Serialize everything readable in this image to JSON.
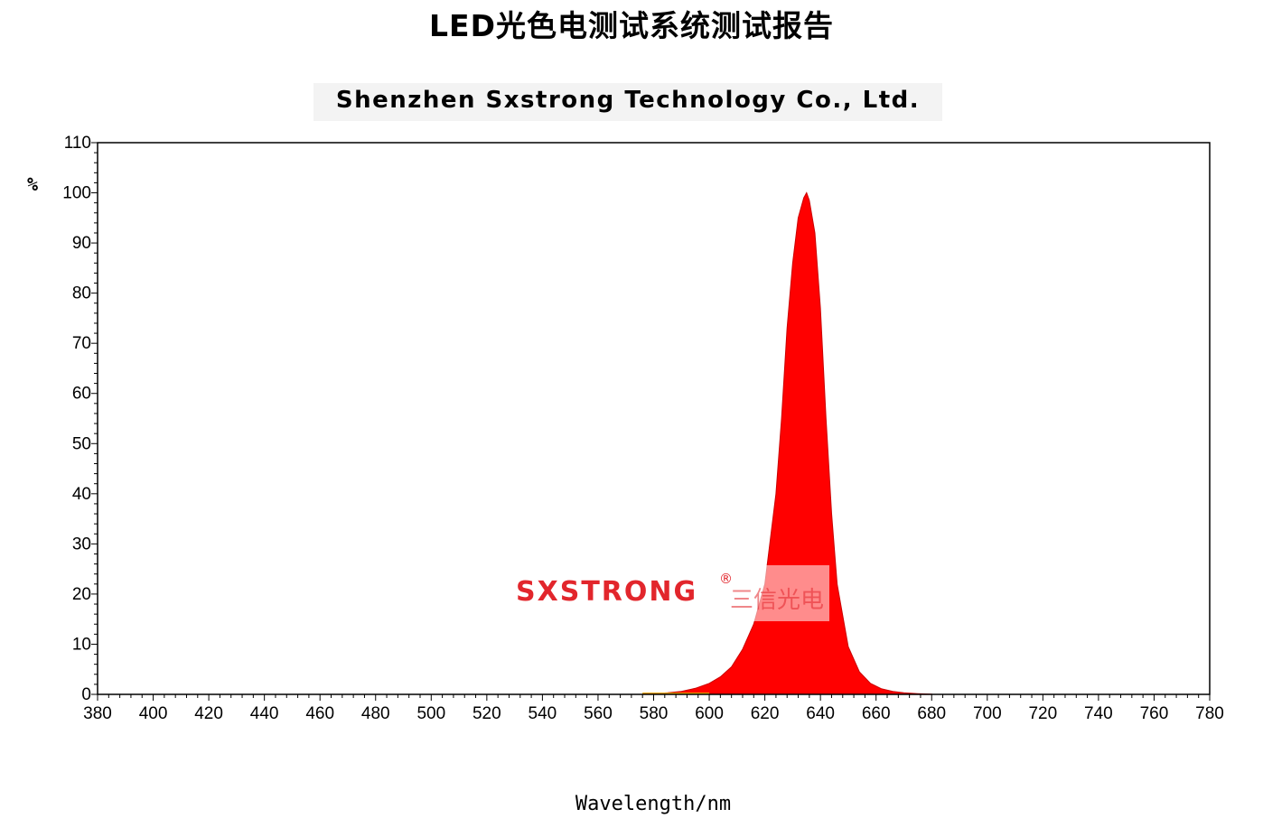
{
  "report_title": "LED光色电测试系统测试报告",
  "company": "Shenzhen Sxstrong Technology Co., Ltd.",
  "watermark": {
    "brand": "SXSTRONG",
    "registered": "®",
    "chinese": "三信光电"
  },
  "colors": {
    "fill": "#ff0000",
    "edge": "#cc0000",
    "tail": "#e7a000",
    "watermark": "#e2262c"
  },
  "chart_data": {
    "type": "area",
    "xlabel": "Wavelength/nm",
    "ylabel": "%",
    "xlim": [
      380,
      780
    ],
    "ylim": [
      0,
      110
    ],
    "xticks": [
      380,
      400,
      420,
      440,
      460,
      480,
      500,
      520,
      540,
      560,
      580,
      600,
      620,
      640,
      660,
      680,
      700,
      720,
      740,
      760,
      780
    ],
    "yticks": [
      0,
      10,
      20,
      30,
      40,
      50,
      60,
      70,
      80,
      90,
      100,
      110
    ],
    "grid": false,
    "legend": "none",
    "series": [
      {
        "x": [
          580,
          585,
          590,
          595,
          600,
          604,
          608,
          612,
          616,
          620,
          624,
          626,
          628,
          630,
          632,
          634,
          635,
          636,
          638,
          640,
          642,
          644,
          646,
          650,
          654,
          658,
          662,
          666,
          670,
          675,
          680
        ],
        "values": [
          0.1,
          0.3,
          0.6,
          1.2,
          2.2,
          3.5,
          5.5,
          9,
          14,
          22,
          40,
          55,
          73,
          86,
          95,
          99,
          100,
          98.5,
          92,
          77,
          55,
          36,
          22,
          9.5,
          4.5,
          2.2,
          1.1,
          0.6,
          0.3,
          0.15,
          0.05
        ]
      }
    ]
  }
}
